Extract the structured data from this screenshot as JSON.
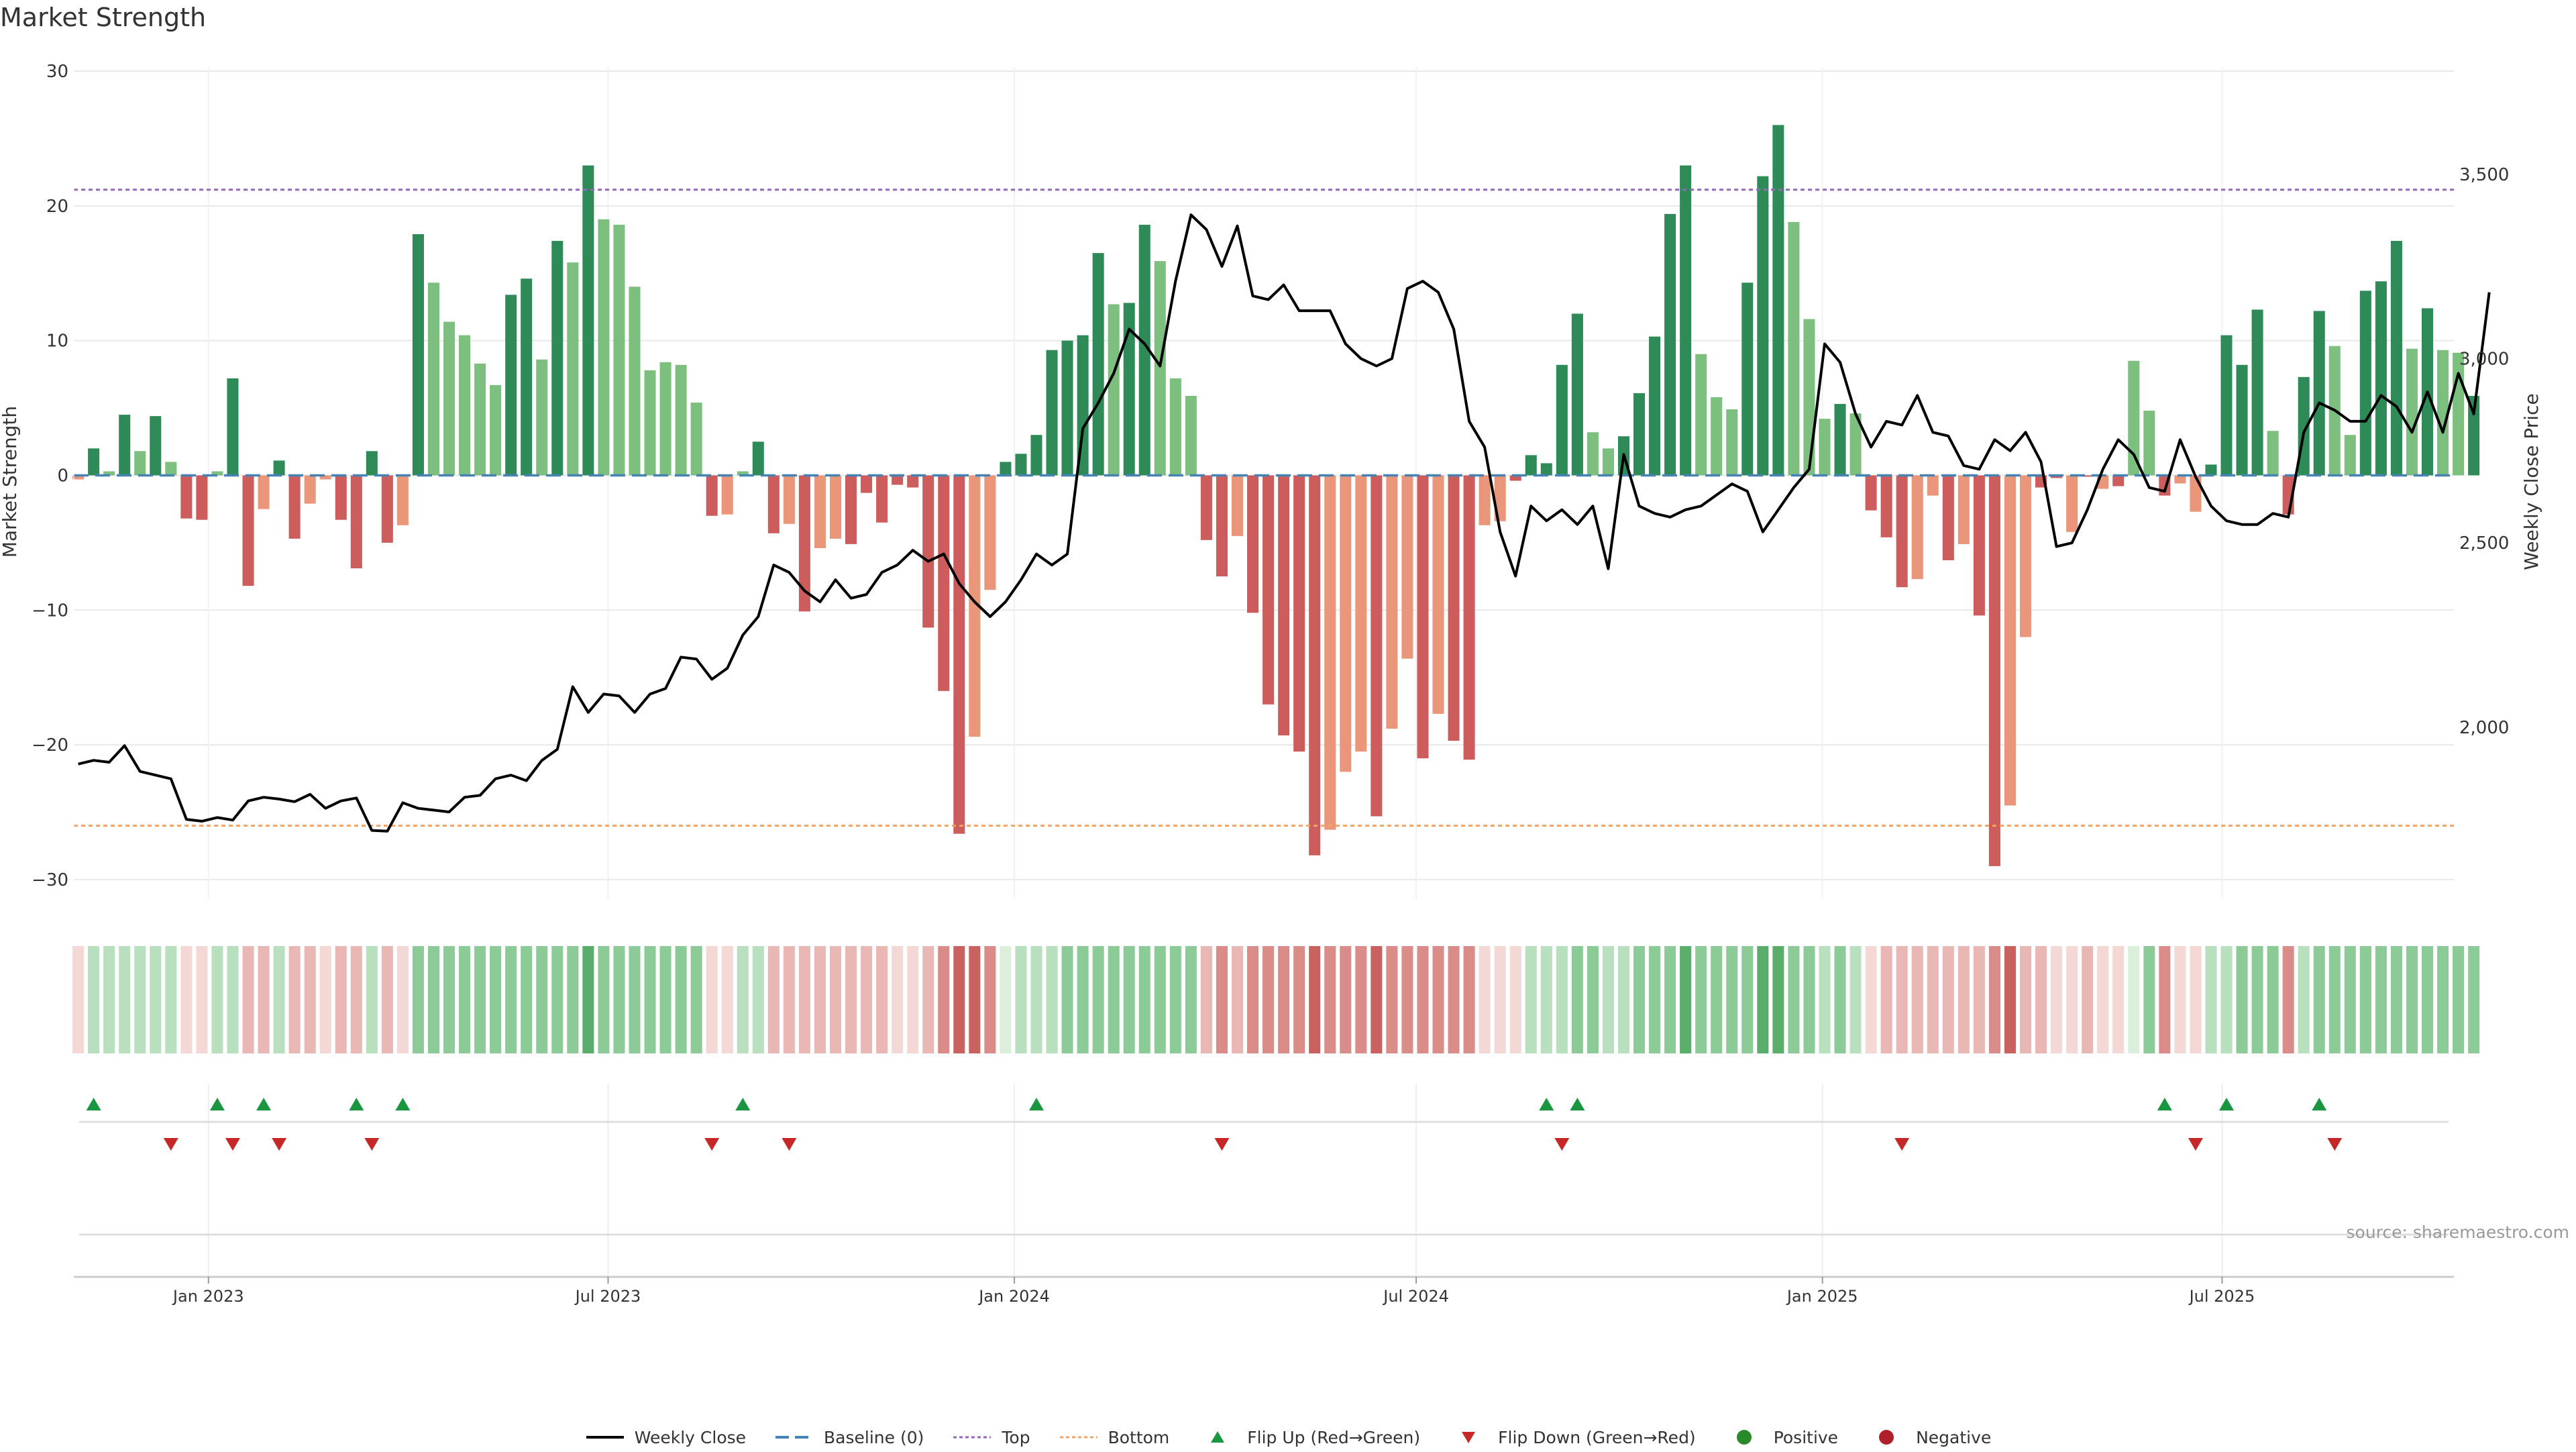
{
  "title": "Market Strength",
  "source": "source: sharemaestro.com",
  "colors": {
    "strong_green": "#2e8b57",
    "light_green": "#7dbf7e",
    "strong_red": "#cd5c5c",
    "light_red": "#e9967a",
    "line": "#000000",
    "baseline": "#4682b4",
    "top": "#9467bd",
    "bottom": "#f4a460",
    "flip_up": "#1a9641",
    "flip_down": "#c62828",
    "grid": "#e8e8e8"
  },
  "legend": [
    {
      "key": "line",
      "label": "Weekly Close"
    },
    {
      "key": "baseline",
      "label": "Baseline (0)"
    },
    {
      "key": "top",
      "label": "Top"
    },
    {
      "key": "bottom",
      "label": "Bottom"
    },
    {
      "key": "flip_up",
      "label": "Flip Up (Red→Green)"
    },
    {
      "key": "flip_down",
      "label": "Flip Down (Green→Red)"
    },
    {
      "key": "positive",
      "label": "Positive"
    },
    {
      "key": "negative",
      "label": "Negative"
    }
  ],
  "chart_data": {
    "type": "bar",
    "title": "Market Strength",
    "ylabel": "Market Strength",
    "y2label": "Weekly Close Price",
    "ylim": [
      -31,
      30
    ],
    "y2lim": [
      1550,
      3780
    ],
    "yticks": [
      30,
      20,
      10,
      0,
      -10,
      -20,
      -30
    ],
    "y2ticks": [
      3500,
      3000,
      2500,
      2000
    ],
    "y2ticklabels": [
      "3,500",
      "3,000",
      "2,500",
      "2,000"
    ],
    "top_level": 21.2,
    "bottom_level": -26,
    "baseline": 0,
    "xlim": [
      "2022-11-01",
      "2025-10-14"
    ],
    "xticks": [
      {
        "date": "2023-01-01",
        "label": "Jan 2023"
      },
      {
        "date": "2023-07-01",
        "label": "Jul 2023"
      },
      {
        "date": "2024-01-01",
        "label": "Jan 2024"
      },
      {
        "date": "2024-07-01",
        "label": "Jul 2024"
      },
      {
        "date": "2025-01-01",
        "label": "Jan 2025"
      },
      {
        "date": "2025-07-01",
        "label": "Jul 2025"
      }
    ],
    "start_date": "2022-11-03",
    "interval_days": 7,
    "strength": [
      -0.3,
      2,
      0.3,
      4.5,
      1.8,
      4.4,
      1,
      -3.2,
      -3.3,
      0.3,
      7.2,
      -8.2,
      -2.5,
      1.1,
      -4.7,
      -2.1,
      -0.3,
      -3.3,
      -6.9,
      1.8,
      -5,
      -3.7,
      17.9,
      14.3,
      11.4,
      10.4,
      8.3,
      6.7,
      13.4,
      14.6,
      8.6,
      17.4,
      15.8,
      23,
      19,
      18.6,
      14,
      7.8,
      8.4,
      8.2,
      5.4,
      -3,
      -2.9,
      0.3,
      2.5,
      -4.3,
      -3.6,
      -10.1,
      -5.4,
      -4.7,
      -5.1,
      -1.3,
      -3.5,
      -0.7,
      -0.9,
      -11.3,
      -16,
      -26.6,
      -19.4,
      -8.5,
      1,
      1.6,
      3,
      9.3,
      10,
      10.4,
      16.5,
      12.7,
      12.8,
      18.6,
      15.9,
      7.2,
      5.9,
      -4.8,
      -7.5,
      -4.5,
      -10.2,
      -17,
      -19.3,
      -20.5,
      -28.2,
      -26.3,
      -22,
      -20.5,
      -25.3,
      -18.8,
      -13.6,
      -21,
      -17.7,
      -19.7,
      -21.1,
      -3.7,
      -3.4,
      -0.4,
      1.5,
      0.9,
      8.2,
      12,
      3.2,
      2,
      2.9,
      6.1,
      10.3,
      19.4,
      23,
      9,
      5.8,
      4.9,
      14.3,
      22.2,
      26,
      18.8,
      11.6,
      4.2,
      5.3,
      4.6,
      -2.6,
      -4.6,
      -8.3,
      -7.7,
      -1.5,
      -6.3,
      -5.1,
      -10.4,
      -29,
      -24.5,
      -12,
      -0.9,
      -0.2,
      -4.2,
      -0.1,
      -1,
      -0.8,
      8.5,
      4.8,
      -1.5,
      -0.6,
      -2.7,
      0.8,
      10.4,
      8.2,
      12.3,
      3.3,
      -2.9,
      7.3,
      12.2,
      9.6,
      3,
      13.7,
      14.4,
      17.4,
      9.4,
      12.4,
      9.3,
      9.1,
      5.9
    ],
    "bar_shade": [
      "L",
      "S",
      "L",
      "S",
      "L",
      "S",
      "L",
      "S",
      "S",
      "L",
      "S",
      "S",
      "L",
      "S",
      "S",
      "L",
      "L",
      "S",
      "S",
      "S",
      "S",
      "L",
      "S",
      "L",
      "L",
      "L",
      "L",
      "L",
      "S",
      "S",
      "L",
      "S",
      "L",
      "S",
      "L",
      "L",
      "L",
      "L",
      "L",
      "L",
      "L",
      "S",
      "L",
      "L",
      "S",
      "S",
      "L",
      "S",
      "L",
      "L",
      "S",
      "S",
      "S",
      "S",
      "S",
      "S",
      "S",
      "S",
      "L",
      "L",
      "S",
      "S",
      "S",
      "S",
      "S",
      "S",
      "S",
      "L",
      "S",
      "S",
      "L",
      "L",
      "L",
      "S",
      "S",
      "L",
      "S",
      "S",
      "S",
      "S",
      "S",
      "L",
      "L",
      "L",
      "S",
      "L",
      "L",
      "S",
      "L",
      "S",
      "S",
      "L",
      "L",
      "S",
      "S",
      "S",
      "S",
      "S",
      "L",
      "L",
      "S",
      "S",
      "S",
      "S",
      "S",
      "L",
      "L",
      "L",
      "S",
      "S",
      "S",
      "L",
      "L",
      "L",
      "S",
      "L",
      "S",
      "S",
      "S",
      "L",
      "L",
      "S",
      "L",
      "S",
      "S",
      "L",
      "L",
      "S",
      "S",
      "L",
      "S",
      "L",
      "S",
      "L",
      "L",
      "S",
      "L",
      "L",
      "S",
      "S",
      "S",
      "S",
      "L",
      "S",
      "S",
      "S",
      "L",
      "L",
      "S",
      "S",
      "S",
      "L",
      "S",
      "L",
      "L",
      "S",
      "L"
    ],
    "close": [
      1900,
      1910,
      1905,
      1950,
      1880,
      1870,
      1860,
      1750,
      1745,
      1755,
      1748,
      1800,
      1810,
      1805,
      1798,
      1818,
      1780,
      1800,
      1808,
      1720,
      1718,
      1795,
      1780,
      1775,
      1770,
      1810,
      1815,
      1860,
      1870,
      1855,
      1910,
      1940,
      2110,
      2040,
      2090,
      2085,
      2040,
      2090,
      2105,
      2190,
      2185,
      2130,
      2160,
      2250,
      2300,
      2440,
      2420,
      2370,
      2340,
      2400,
      2350,
      2360,
      2420,
      2440,
      2480,
      2450,
      2470,
      2390,
      2340,
      2300,
      2340,
      2400,
      2470,
      2440,
      2470,
      2810,
      2880,
      2960,
      3080,
      3040,
      2980,
      3210,
      3390,
      3350,
      3250,
      3360,
      3170,
      3160,
      3200,
      3130,
      3130,
      3130,
      3040,
      3000,
      2980,
      3000,
      3190,
      3210,
      3180,
      3080,
      2830,
      2760,
      2530,
      2410,
      2600,
      2560,
      2590,
      2550,
      2600,
      2430,
      2740,
      2600,
      2580,
      2570,
      2590,
      2600,
      2630,
      2660,
      2640,
      2530,
      2590,
      2650,
      2700,
      3040,
      2990,
      2850,
      2760,
      2830,
      2820,
      2900,
      2800,
      2790,
      2710,
      2700,
      2780,
      2750,
      2800,
      2720,
      2490,
      2500,
      2590,
      2700,
      2780,
      2740,
      2650,
      2640,
      2780,
      2680,
      2600,
      2560,
      2550,
      2550,
      2580,
      2570,
      2800,
      2880,
      2860,
      2830,
      2830,
      2900,
      2870,
      2800,
      2910,
      2800,
      2960,
      2850,
      3180
    ],
    "heat_level": [
      1,
      2,
      2,
      2,
      2,
      2,
      2,
      1,
      1,
      2,
      2,
      2,
      2,
      2,
      2,
      2,
      1,
      2,
      2,
      2,
      2,
      1,
      3,
      3,
      3,
      3,
      3,
      3,
      3,
      3,
      3,
      3,
      3,
      4,
      3,
      3,
      3,
      3,
      3,
      3,
      3,
      1,
      1,
      2,
      2,
      2,
      2,
      2,
      2,
      2,
      2,
      2,
      2,
      1,
      1,
      2,
      3,
      4,
      4,
      3,
      1,
      2,
      2,
      2,
      3,
      3,
      3,
      3,
      3,
      3,
      3,
      3,
      3,
      2,
      3,
      2,
      3,
      3,
      3,
      3,
      4,
      3,
      3,
      3,
      4,
      3,
      3,
      3,
      3,
      3,
      3,
      1,
      1,
      1,
      2,
      2,
      2,
      3,
      3,
      2,
      2,
      3,
      3,
      3,
      4,
      3,
      3,
      3,
      3,
      4,
      4,
      3,
      3,
      2,
      3,
      2,
      1,
      2,
      2,
      2,
      2,
      2,
      2,
      2,
      3,
      4,
      2,
      2,
      1,
      1,
      2,
      1,
      1,
      1,
      3,
      3,
      1,
      1,
      2,
      2,
      3,
      3,
      3,
      3,
      2,
      3,
      3,
      3,
      3,
      3,
      3,
      3,
      3,
      3,
      3,
      3
    ],
    "flip_up": [
      "2022-11-10",
      "2023-01-05",
      "2023-01-26",
      "2023-03-09",
      "2023-03-30",
      "2023-08-31",
      "2024-01-11",
      "2024-08-29",
      "2024-09-12",
      "2025-06-05",
      "2025-07-03",
      "2025-08-14"
    ],
    "flip_down": [
      "2022-12-15",
      "2023-01-12",
      "2023-02-02",
      "2023-03-16",
      "2023-08-17",
      "2023-09-21",
      "2024-04-04",
      "2024-09-05",
      "2025-02-06",
      "2025-06-19",
      "2025-08-21"
    ]
  }
}
